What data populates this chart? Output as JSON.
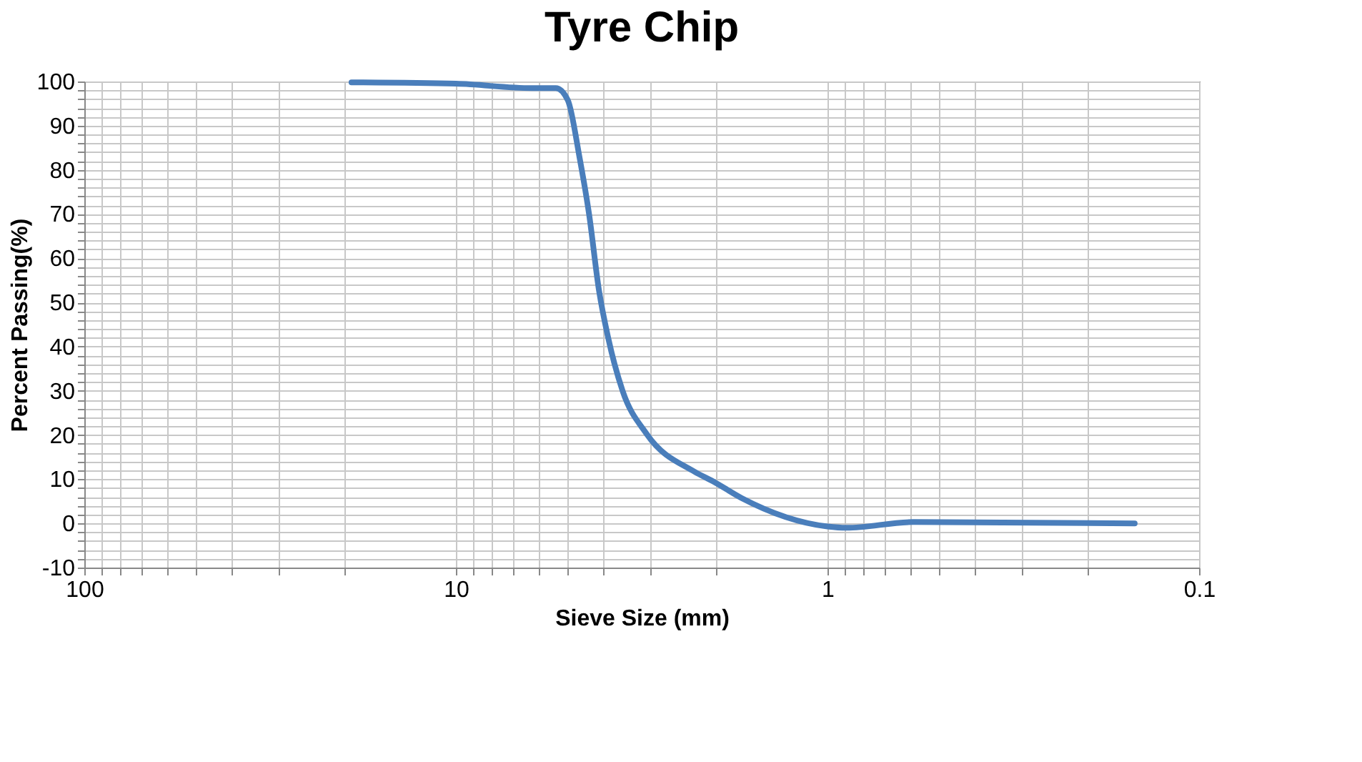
{
  "chart_data": {
    "type": "line",
    "title": "Tyre Chip",
    "xlabel": "Sieve Size (mm)",
    "ylabel": "Percent Passing(%)",
    "log": "x",
    "grid": true,
    "marker": "none",
    "line_style": "solid",
    "xlim": [
      100,
      0.1
    ],
    "ylim": [
      -10,
      100
    ],
    "xticks": [
      100,
      {
        "value": 90,
        "label": null
      },
      {
        "value": 80,
        "label": null
      },
      {
        "value": 70,
        "label": null
      },
      {
        "value": 60,
        "label": null
      },
      {
        "value": 50,
        "label": null
      },
      {
        "value": 40,
        "label": null
      },
      {
        "value": 30,
        "label": null
      },
      {
        "value": 20,
        "label": null
      },
      10,
      {
        "value": 9,
        "label": null
      },
      {
        "value": 8,
        "label": null
      },
      {
        "value": 7,
        "label": null
      },
      {
        "value": 6,
        "label": null
      },
      {
        "value": 5,
        "label": null
      },
      {
        "value": 4,
        "label": null
      },
      {
        "value": 3,
        "label": null
      },
      {
        "value": 2,
        "label": null
      },
      1,
      {
        "value": 0.9,
        "label": null
      },
      {
        "value": 0.8,
        "label": null
      },
      {
        "value": 0.7,
        "label": null
      },
      {
        "value": 0.6,
        "label": null
      },
      {
        "value": 0.5,
        "label": null
      },
      {
        "value": 0.4,
        "label": null
      },
      {
        "value": 0.3,
        "label": null
      },
      {
        "value": 0.2,
        "label": null
      },
      0.1
    ],
    "yticks": [
      -10,
      {
        "value": -8,
        "label": null
      },
      {
        "value": -6,
        "label": null
      },
      {
        "value": -4,
        "label": null
      },
      {
        "value": -2,
        "label": null
      },
      0,
      {
        "value": 2,
        "label": null
      },
      {
        "value": 4,
        "label": null
      },
      {
        "value": 6,
        "label": null
      },
      {
        "value": 8,
        "label": null
      },
      10,
      {
        "value": 12,
        "label": null
      },
      {
        "value": 14,
        "label": null
      },
      {
        "value": 16,
        "label": null
      },
      {
        "value": 18,
        "label": null
      },
      20,
      {
        "value": 22,
        "label": null
      },
      {
        "value": 24,
        "label": null
      },
      {
        "value": 26,
        "label": null
      },
      {
        "value": 28,
        "label": null
      },
      30,
      {
        "value": 32,
        "label": null
      },
      {
        "value": 34,
        "label": null
      },
      {
        "value": 36,
        "label": null
      },
      {
        "value": 38,
        "label": null
      },
      40,
      {
        "value": 42,
        "label": null
      },
      {
        "value": 44,
        "label": null
      },
      {
        "value": 46,
        "label": null
      },
      {
        "value": 48,
        "label": null
      },
      50,
      {
        "value": 52,
        "label": null
      },
      {
        "value": 54,
        "label": null
      },
      {
        "value": 56,
        "label": null
      },
      {
        "value": 58,
        "label": null
      },
      60,
      {
        "value": 62,
        "label": null
      },
      {
        "value": 64,
        "label": null
      },
      {
        "value": 66,
        "label": null
      },
      {
        "value": 68,
        "label": null
      },
      70,
      {
        "value": 72,
        "label": null
      },
      {
        "value": 74,
        "label": null
      },
      {
        "value": 76,
        "label": null
      },
      {
        "value": 78,
        "label": null
      },
      80,
      {
        "value": 82,
        "label": null
      },
      {
        "value": 84,
        "label": null
      },
      {
        "value": 86,
        "label": null
      },
      {
        "value": 88,
        "label": null
      },
      90,
      {
        "value": 92,
        "label": null
      },
      {
        "value": 94,
        "label": null
      },
      {
        "value": 96,
        "label": null
      },
      {
        "value": 98,
        "label": null
      },
      100
    ],
    "series": [
      {
        "color": "#4a7ebb",
        "x": [
          19.1,
          10,
          6.24,
          5.38,
          5.0,
          4.65,
          4.38,
          4.12,
          3.89,
          3.56,
          3.07,
          2.28,
          2.03,
          1.7,
          1.0,
          0.889,
          0.588,
          0.149
        ],
        "values": [
          99.8,
          99.5,
          98.5,
          98.5,
          95.8,
          82.9,
          69.9,
          52.7,
          41.9,
          30,
          20.3,
          11.7,
          9.5,
          5.7,
          -0.7,
          -1.0,
          0.3,
          0
        ]
      }
    ]
  }
}
